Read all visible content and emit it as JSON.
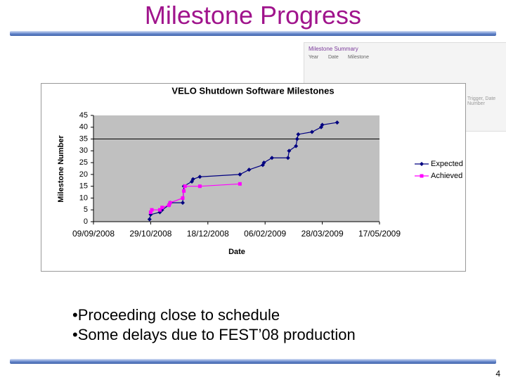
{
  "slide": {
    "title": "Milestone Progress",
    "bullets": [
      "Proceeding close to schedule",
      "Some delays due to FEST’08 production"
    ],
    "page_number": "4"
  },
  "background_screenshot": {
    "title": "Milestone Summary",
    "columns": [
      "Year",
      "Date",
      "Milestone"
    ],
    "side_text": "Trigger, Date Number"
  },
  "chart_data": {
    "type": "line",
    "title": "VELO Shutdown Software Milestones",
    "x_label": "Date",
    "y_label": "Milestone Number",
    "xlim": [
      "2008-09-09",
      "2009-05-17"
    ],
    "xticks": [
      {
        "value": "2008-09-09",
        "label": "09/09/2008"
      },
      {
        "value": "2008-10-29",
        "label": "29/10/2008"
      },
      {
        "value": "2008-12-18",
        "label": "18/12/2008"
      },
      {
        "value": "2009-02-06",
        "label": "06/02/2009"
      },
      {
        "value": "2009-03-28",
        "label": "28/03/2009"
      },
      {
        "value": "2009-05-17",
        "label": "17/05/2009"
      }
    ],
    "ylim": [
      0,
      45
    ],
    "yticks": [
      0,
      5,
      10,
      15,
      20,
      25,
      30,
      35,
      40,
      45
    ],
    "hline": 35,
    "grid": false,
    "legend": "right",
    "series": [
      {
        "name": "Expected",
        "color": "#000080",
        "marker": "diamond",
        "x": [
          "2008-10-28",
          "2008-10-29",
          "2008-11-06",
          "2008-11-08",
          "2008-11-14",
          "2008-11-15",
          "2008-11-26",
          "2008-11-27",
          "2008-12-04",
          "2008-12-05",
          "2008-12-11",
          "2009-01-15",
          "2009-01-23",
          "2009-02-04",
          "2009-02-05",
          "2009-02-12",
          "2009-02-26",
          "2009-02-27",
          "2009-03-05",
          "2009-03-06",
          "2009-03-07",
          "2009-03-19",
          "2009-03-27",
          "2009-03-28",
          "2009-04-10"
        ],
        "values": [
          1,
          3,
          4,
          5,
          7,
          8,
          8,
          15,
          17,
          18,
          19,
          20,
          22,
          24,
          25,
          27,
          27,
          30,
          32,
          35,
          37,
          38,
          40,
          41,
          42
        ]
      },
      {
        "name": "Achieved",
        "color": "#ff00ff",
        "marker": "square",
        "x": [
          "2008-10-29",
          "2008-10-30",
          "2008-11-06",
          "2008-11-08",
          "2008-11-14",
          "2008-11-15",
          "2008-11-26",
          "2008-11-27",
          "2008-11-28",
          "2008-12-11",
          "2009-01-15"
        ],
        "values": [
          4,
          5,
          5,
          6,
          7,
          8,
          10,
          13,
          15,
          15,
          16
        ]
      }
    ]
  }
}
